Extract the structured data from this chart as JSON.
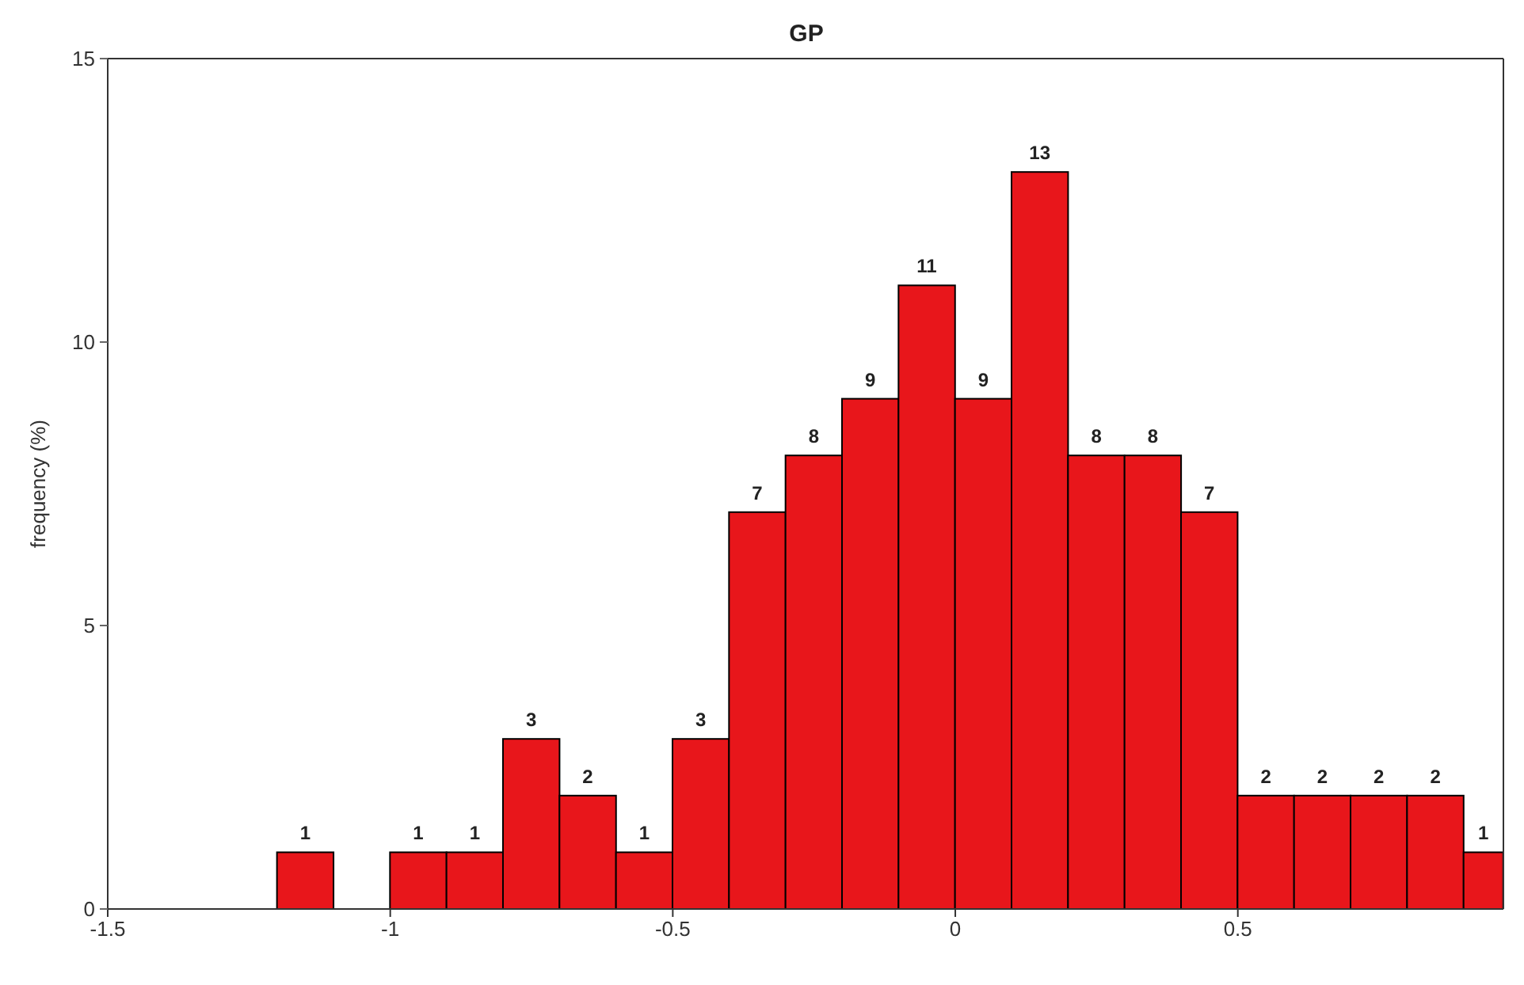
{
  "chart_data": {
    "type": "histogram",
    "title": "GP",
    "ylabel": "frequency (%)",
    "bins": [
      -1.2,
      -1.1,
      -1.0,
      -0.9,
      -0.8,
      -0.7,
      -0.6,
      -0.5,
      -0.4,
      -0.3,
      -0.2,
      -0.1,
      0,
      0.1,
      0.2,
      0.3,
      0.4,
      0.5,
      0.6,
      0.7,
      0.8,
      0.9,
      0.97
    ],
    "values": [
      1,
      0,
      1,
      1,
      3,
      2,
      1,
      3,
      7,
      8,
      9,
      11,
      9,
      13,
      8,
      8,
      7,
      2,
      2,
      2,
      2,
      1
    ],
    "value_labels": [
      "1",
      null,
      "1",
      "1",
      "3",
      "2",
      "1",
      "3",
      "7",
      "8",
      "9",
      "11",
      "9",
      "13",
      "8",
      "8",
      "7",
      "2",
      "2",
      "2",
      "2",
      "1"
    ],
    "color": "#e8161b",
    "xlim": [
      -1.5,
      0.97
    ],
    "xticks": [
      -1.5,
      -1,
      -0.5,
      0,
      0.5
    ],
    "ylim": [
      0,
      15
    ],
    "yticks": [
      0,
      5,
      10,
      15
    ]
  }
}
